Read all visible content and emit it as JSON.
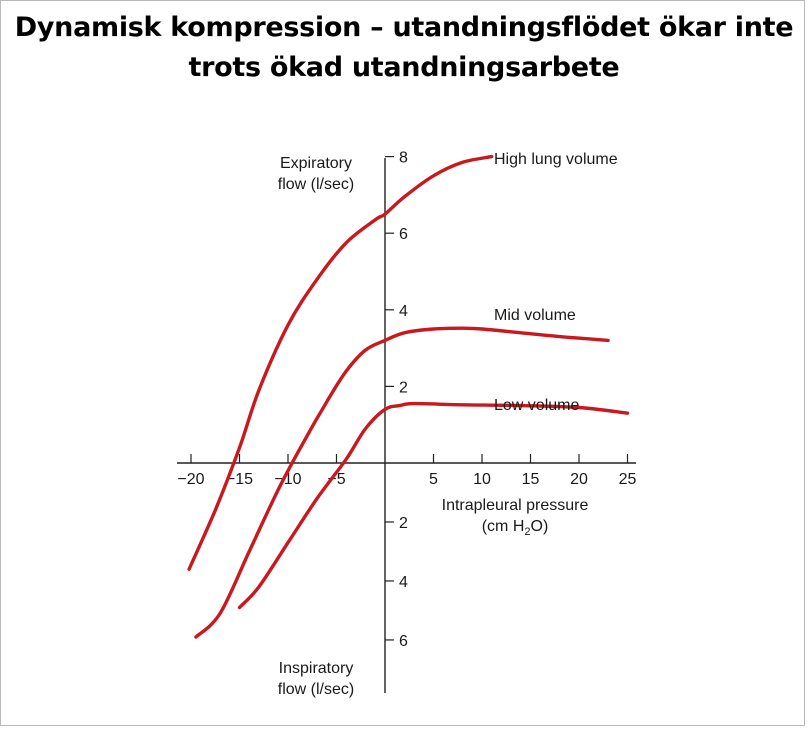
{
  "slide": {
    "title_line1": "Dynamisk kompression – utandningsflödet ökar inte",
    "title_line2": "trots ökad utandningsarbete"
  },
  "chart_data": {
    "type": "line",
    "xlabel_line1": "Intrapleural pressure",
    "xlabel_line2_prefix": "(cm H",
    "xlabel_line2_sub": "2",
    "xlabel_line2_suffix": "O)",
    "ylabel_top_line1": "Expiratory",
    "ylabel_top_line2": "flow (l/sec)",
    "ylabel_bottom_line1": "Inspiratory",
    "ylabel_bottom_line2": "flow (l/sec)",
    "x_ticks": [
      "−20",
      "−15",
      "−10",
      "−5",
      "5",
      "10",
      "15",
      "20",
      "25"
    ],
    "x_tick_values": [
      -20,
      -15,
      -10,
      -5,
      5,
      10,
      15,
      20,
      25
    ],
    "y_ticks_up": [
      "2",
      "4",
      "6",
      "8"
    ],
    "y_tick_values_up": [
      2,
      4,
      6,
      8
    ],
    "y_ticks_down": [
      "2",
      "4",
      "6"
    ],
    "y_tick_values_down": [
      -2,
      -4,
      -6
    ],
    "xlim": [
      -20,
      25
    ],
    "ylim": [
      -6,
      8
    ],
    "line_color": "#c8191e",
    "series": [
      {
        "name": "High lung volume",
        "x": [
          -20.2,
          -17.5,
          -15,
          -13,
          -10,
          -7,
          -4,
          -1,
          0,
          2,
          5,
          8,
          11
        ],
        "y": [
          -3.6,
          -1.6,
          0.4,
          1.9,
          3.6,
          4.8,
          5.75,
          6.35,
          6.5,
          6.95,
          7.5,
          7.85,
          8.0
        ]
      },
      {
        "name": "Mid volume",
        "x": [
          -19.5,
          -17,
          -14,
          -11,
          -8.5,
          -6,
          -4,
          -2,
          0,
          2,
          5,
          8,
          10,
          14,
          18,
          23
        ],
        "y": [
          -5.9,
          -5.1,
          -3.0,
          -0.9,
          0.5,
          1.6,
          2.4,
          2.95,
          3.2,
          3.4,
          3.5,
          3.52,
          3.5,
          3.4,
          3.3,
          3.2
        ]
      },
      {
        "name": "Low volume",
        "x": [
          -15,
          -13,
          -10,
          -7,
          -4,
          -2,
          0,
          1.5,
          3,
          8,
          14,
          20,
          25
        ],
        "y": [
          -4.9,
          -4.2,
          -2.7,
          -1.2,
          0.1,
          0.9,
          1.4,
          1.5,
          1.55,
          1.52,
          1.5,
          1.45,
          1.3
        ]
      }
    ]
  }
}
